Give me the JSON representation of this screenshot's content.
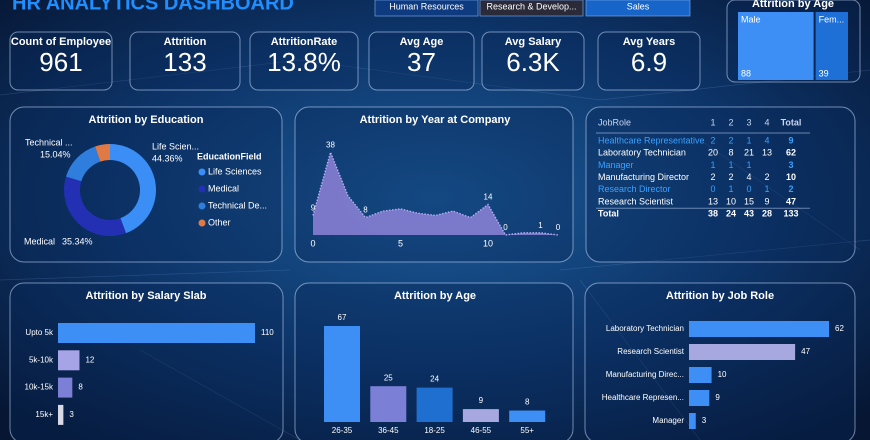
{
  "header": {
    "title": "HR ANALYTICS DASHBOARD"
  },
  "slicers": [
    "Human Resources",
    "Research & Develop...",
    "Sales"
  ],
  "kpis": [
    {
      "label": "Count of Employee",
      "value": 961
    },
    {
      "label": "Attrition",
      "value": 133
    },
    {
      "label": "AttritionRate",
      "value": "13.8%"
    },
    {
      "label": "Avg Age",
      "value": 37
    },
    {
      "label": "Avg Salary",
      "value": "6.3K"
    },
    {
      "label": "Avg Years",
      "value": 6.9
    }
  ],
  "table": {
    "columns": [
      "JobRole",
      "1",
      "2",
      "3",
      "4",
      "Total"
    ],
    "rows": [
      [
        "Healthcare Representative",
        2,
        2,
        1,
        4,
        9
      ],
      [
        "Laboratory Technician",
        20,
        8,
        21,
        13,
        62
      ],
      [
        "Manager",
        1,
        1,
        1,
        null,
        3
      ],
      [
        "Manufacturing Director",
        2,
        2,
        4,
        2,
        10
      ],
      [
        "Research Director",
        0,
        1,
        0,
        1,
        2
      ],
      [
        "Research Scientist",
        13,
        10,
        15,
        9,
        47
      ],
      [
        "Total",
        38,
        24,
        43,
        28,
        133
      ]
    ],
    "highlighted_rows": [
      0,
      2,
      4
    ]
  },
  "chart_data": [
    {
      "type": "treemap",
      "title": "Attrition by Age",
      "categories": [
        "Male",
        "Fem..."
      ],
      "values": [
        88,
        39
      ],
      "colors": [
        "#3d8ef5",
        "#1e6fd6"
      ]
    },
    {
      "type": "donut",
      "title": "Attrition by Education",
      "legend_title": "EducationField",
      "categories": [
        "Life Sciences",
        "Medical",
        "Technical De...",
        "Other"
      ],
      "slice_labels": [
        "Life Scien...",
        "Medical",
        "Technical ...",
        null
      ],
      "values": [
        44.36,
        35.34,
        15.04,
        5.26
      ],
      "value_labels": [
        "44.36%",
        "35.34%",
        "15.04%",
        null
      ],
      "colors": [
        "#3a8ef6",
        "#2330b4",
        "#2f7ddc",
        "#e07a45"
      ]
    },
    {
      "type": "area",
      "title": "Attrition by Year at Company",
      "x": [
        0,
        1,
        2,
        3,
        4,
        5,
        6,
        7,
        8,
        9,
        10,
        11,
        12,
        13,
        14
      ],
      "values": [
        9,
        38,
        18,
        8,
        11,
        12,
        10,
        9,
        11,
        8,
        14,
        0,
        1,
        1,
        0
      ],
      "value_labels": [
        "9",
        "38",
        null,
        "8",
        null,
        null,
        null,
        null,
        null,
        null,
        "14",
        "0",
        null,
        "1",
        "0"
      ],
      "xlim": [
        0,
        14
      ],
      "xticks": [
        0,
        5,
        10
      ],
      "ylim": [
        0,
        40
      ],
      "color": "#8e82d8"
    },
    {
      "type": "bar",
      "horizontal": true,
      "title": "Attrition by Salary Slab",
      "categories": [
        "Upto 5k",
        "5k-10k",
        "10k-15k",
        "15k+"
      ],
      "values": [
        110,
        12,
        8,
        3
      ],
      "colors": [
        "#3d8ef5",
        "#a6a3e6",
        "#7b7fd6",
        "#d8d8e6"
      ]
    },
    {
      "type": "bar",
      "title": "Attrition by Age",
      "categories": [
        "26-35",
        "36-45",
        "18-25",
        "46-55",
        "55+"
      ],
      "values": [
        67,
        25,
        24,
        9,
        8
      ],
      "colors": [
        "#3d8ef5",
        "#7b7fd6",
        "#1f6fd0",
        "#a8a8e0",
        "#3d8ef5"
      ]
    },
    {
      "type": "bar",
      "horizontal": true,
      "title": "Attrition by Job Role",
      "categories": [
        "Laboratory Technician",
        "Research Scientist",
        "Manufacturing Direc...",
        "Healthcare Represen...",
        "Manager"
      ],
      "values": [
        62,
        47,
        10,
        9,
        3
      ],
      "colors": [
        "#3d8ef5",
        "#a8a8e0",
        "#3d8ef5",
        "#3d8ef5",
        "#3d8ef5"
      ]
    }
  ]
}
